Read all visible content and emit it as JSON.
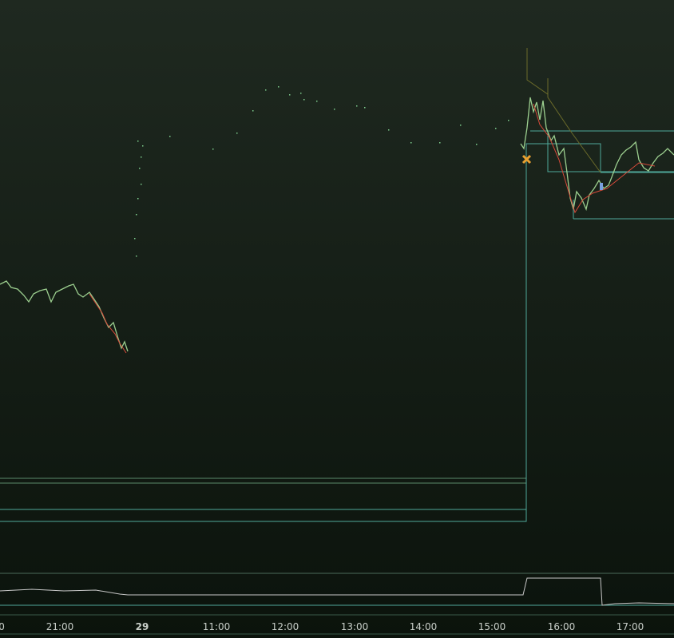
{
  "x_axis": {
    "labels": [
      "0",
      "21:00",
      "29",
      "11:00",
      "12:00",
      "13:00",
      "14:00",
      "15:00",
      "16:00",
      "17:00"
    ]
  }
}
